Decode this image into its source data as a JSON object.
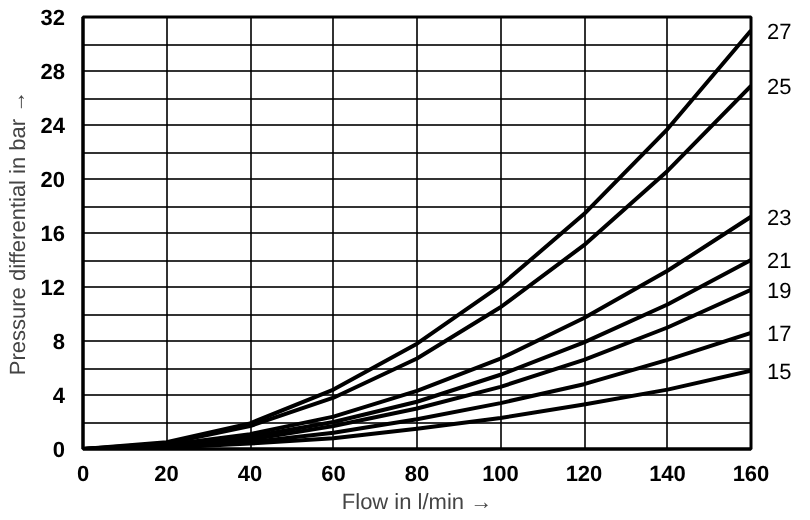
{
  "chart_data": {
    "type": "line",
    "xlabel": "Flow in l/min →",
    "ylabel": "Pressure differential in bar →",
    "x": [
      0,
      20,
      40,
      60,
      80,
      100,
      120,
      140,
      160
    ],
    "series": [
      {
        "name": "27",
        "color": "#000000",
        "values": [
          0,
          0.5,
          1.9,
          4.4,
          7.8,
          12.1,
          17.4,
          23.7,
          31
        ]
      },
      {
        "name": "25",
        "color": "#000000",
        "values": [
          0,
          0.4,
          1.7,
          3.8,
          6.7,
          10.5,
          15.1,
          20.6,
          26.9
        ]
      },
      {
        "name": "23",
        "color": "#000000",
        "values": [
          0,
          0.3,
          1.1,
          2.4,
          4.3,
          6.7,
          9.7,
          13.2,
          17.2
        ]
      },
      {
        "name": "21",
        "color": "#000000",
        "values": [
          0,
          0.2,
          0.9,
          2.0,
          3.5,
          5.5,
          7.9,
          10.7,
          14
        ]
      },
      {
        "name": "19",
        "color": "#000000",
        "values": [
          0,
          0.2,
          0.7,
          1.7,
          3.0,
          4.6,
          6.6,
          9.0,
          11.8
        ]
      },
      {
        "name": "17",
        "color": "#000000",
        "values": [
          0,
          0.1,
          0.5,
          1.2,
          2.2,
          3.4,
          4.8,
          6.6,
          8.6
        ]
      },
      {
        "name": "15",
        "color": "#000000",
        "values": [
          0,
          0.1,
          0.4,
          0.8,
          1.5,
          2.3,
          3.3,
          4.4,
          5.8
        ]
      }
    ],
    "xlim": [
      0,
      160
    ],
    "xticks": [
      0,
      20,
      40,
      60,
      80,
      100,
      120,
      140,
      160
    ],
    "ylim": [
      0,
      32
    ],
    "yticks": [
      0,
      {
        "value": 2,
        "label": null
      },
      4,
      {
        "value": 6,
        "label": null
      },
      8,
      {
        "value": 10,
        "label": null
      },
      12,
      {
        "value": 14,
        "label": null
      },
      16,
      {
        "value": 18,
        "label": null
      },
      20,
      {
        "value": 22,
        "label": null
      },
      24,
      {
        "value": 26,
        "label": null
      },
      28,
      {
        "value": 30,
        "label": null
      },
      32
    ],
    "grid": true,
    "marker": "none",
    "line_style": "solid"
  }
}
